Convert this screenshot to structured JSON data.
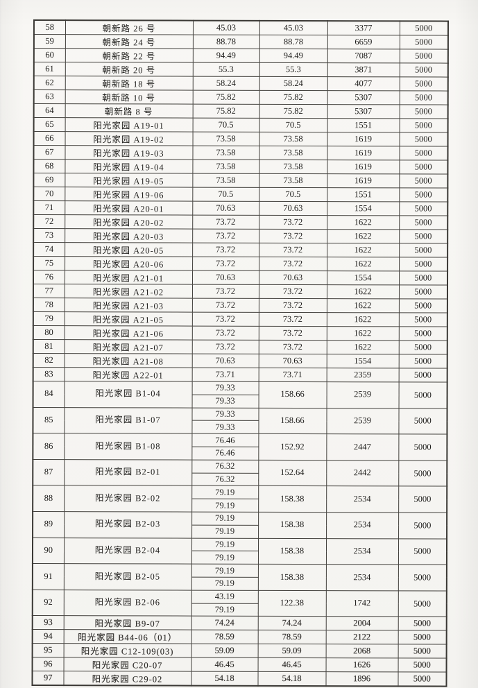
{
  "colors": {
    "paper": "#f6f5f2",
    "ink": "#1d1c1a",
    "table_line": "#413f3b"
  },
  "table": {
    "column_names": [
      "row-number",
      "location-name",
      "area-part",
      "area-total",
      "amount",
      "fixed-amount"
    ],
    "rows": [
      {
        "no": "58",
        "name": "朝新路 26 号",
        "parts": [
          "45.03"
        ],
        "total": "45.03",
        "amount": "3377",
        "subsidy": "5000"
      },
      {
        "no": "59",
        "name": "朝新路 24 号",
        "parts": [
          "88.78"
        ],
        "total": "88.78",
        "amount": "6659",
        "subsidy": "5000"
      },
      {
        "no": "60",
        "name": "朝新路 22 号",
        "parts": [
          "94.49"
        ],
        "total": "94.49",
        "amount": "7087",
        "subsidy": "5000"
      },
      {
        "no": "61",
        "name": "朝新路 20 号",
        "parts": [
          "55.3"
        ],
        "total": "55.3",
        "amount": "3871",
        "subsidy": "5000"
      },
      {
        "no": "62",
        "name": "朝新路 18 号",
        "parts": [
          "58.24"
        ],
        "total": "58.24",
        "amount": "4077",
        "subsidy": "5000"
      },
      {
        "no": "63",
        "name": "朝新路 10 号",
        "parts": [
          "75.82"
        ],
        "total": "75.82",
        "amount": "5307",
        "subsidy": "5000"
      },
      {
        "no": "64",
        "name": "朝新路 8 号",
        "parts": [
          "75.82"
        ],
        "total": "75.82",
        "amount": "5307",
        "subsidy": "5000"
      },
      {
        "no": "65",
        "name": "阳光家园 A19-01",
        "parts": [
          "70.5"
        ],
        "total": "70.5",
        "amount": "1551",
        "subsidy": "5000"
      },
      {
        "no": "66",
        "name": "阳光家园 A19-02",
        "parts": [
          "73.58"
        ],
        "total": "73.58",
        "amount": "1619",
        "subsidy": "5000"
      },
      {
        "no": "67",
        "name": "阳光家园 A19-03",
        "parts": [
          "73.58"
        ],
        "total": "73.58",
        "amount": "1619",
        "subsidy": "5000"
      },
      {
        "no": "68",
        "name": "阳光家园 A19-04",
        "parts": [
          "73.58"
        ],
        "total": "73.58",
        "amount": "1619",
        "subsidy": "5000"
      },
      {
        "no": "69",
        "name": "阳光家园 A19-05",
        "parts": [
          "73.58"
        ],
        "total": "73.58",
        "amount": "1619",
        "subsidy": "5000"
      },
      {
        "no": "70",
        "name": "阳光家园 A19-06",
        "parts": [
          "70.5"
        ],
        "total": "70.5",
        "amount": "1551",
        "subsidy": "5000"
      },
      {
        "no": "71",
        "name": "阳光家园 A20-01",
        "parts": [
          "70.63"
        ],
        "total": "70.63",
        "amount": "1554",
        "subsidy": "5000"
      },
      {
        "no": "72",
        "name": "阳光家园 A20-02",
        "parts": [
          "73.72"
        ],
        "total": "73.72",
        "amount": "1622",
        "subsidy": "5000"
      },
      {
        "no": "73",
        "name": "阳光家园 A20-03",
        "parts": [
          "73.72"
        ],
        "total": "73.72",
        "amount": "1622",
        "subsidy": "5000"
      },
      {
        "no": "74",
        "name": "阳光家园 A20-05",
        "parts": [
          "73.72"
        ],
        "total": "73.72",
        "amount": "1622",
        "subsidy": "5000"
      },
      {
        "no": "75",
        "name": "阳光家园 A20-06",
        "parts": [
          "73.72"
        ],
        "total": "73.72",
        "amount": "1622",
        "subsidy": "5000"
      },
      {
        "no": "76",
        "name": "阳光家园 A21-01",
        "parts": [
          "70.63"
        ],
        "total": "70.63",
        "amount": "1554",
        "subsidy": "5000"
      },
      {
        "no": "77",
        "name": "阳光家园 A21-02",
        "parts": [
          "73.72"
        ],
        "total": "73.72",
        "amount": "1622",
        "subsidy": "5000"
      },
      {
        "no": "78",
        "name": "阳光家园 A21-03",
        "parts": [
          "73.72"
        ],
        "total": "73.72",
        "amount": "1622",
        "subsidy": "5000"
      },
      {
        "no": "79",
        "name": "阳光家园 A21-05",
        "parts": [
          "73.72"
        ],
        "total": "73.72",
        "amount": "1622",
        "subsidy": "5000"
      },
      {
        "no": "80",
        "name": "阳光家园 A21-06",
        "parts": [
          "73.72"
        ],
        "total": "73.72",
        "amount": "1622",
        "subsidy": "5000"
      },
      {
        "no": "81",
        "name": "阳光家园 A21-07",
        "parts": [
          "73.72"
        ],
        "total": "73.72",
        "amount": "1622",
        "subsidy": "5000"
      },
      {
        "no": "82",
        "name": "阳光家园 A21-08",
        "parts": [
          "70.63"
        ],
        "total": "70.63",
        "amount": "1554",
        "subsidy": "5000"
      },
      {
        "no": "83",
        "name": "阳光家园 A22-01",
        "parts": [
          "73.71"
        ],
        "total": "73.71",
        "amount": "2359",
        "subsidy": "5000"
      },
      {
        "no": "84",
        "name": "阳光家园 B1-04",
        "parts": [
          "79.33",
          "79.33"
        ],
        "total": "158.66",
        "amount": "2539",
        "subsidy": "5000"
      },
      {
        "no": "85",
        "name": "阳光家园 B1-07",
        "parts": [
          "79.33",
          "79.33"
        ],
        "total": "158.66",
        "amount": "2539",
        "subsidy": "5000"
      },
      {
        "no": "86",
        "name": "阳光家园 B1-08",
        "parts": [
          "76.46",
          "76.46"
        ],
        "total": "152.92",
        "amount": "2447",
        "subsidy": "5000"
      },
      {
        "no": "87",
        "name": "阳光家园 B2-01",
        "parts": [
          "76.32",
          "76.32"
        ],
        "total": "152.64",
        "amount": "2442",
        "subsidy": "5000"
      },
      {
        "no": "88",
        "name": "阳光家园 B2-02",
        "parts": [
          "79.19",
          "79.19"
        ],
        "total": "158.38",
        "amount": "2534",
        "subsidy": "5000"
      },
      {
        "no": "89",
        "name": "阳光家园 B2-03",
        "parts": [
          "79.19",
          "79.19"
        ],
        "total": "158.38",
        "amount": "2534",
        "subsidy": "5000"
      },
      {
        "no": "90",
        "name": "阳光家园 B2-04",
        "parts": [
          "79.19",
          "79.19"
        ],
        "total": "158.38",
        "amount": "2534",
        "subsidy": "5000"
      },
      {
        "no": "91",
        "name": "阳光家园 B2-05",
        "parts": [
          "79.19",
          "79.19"
        ],
        "total": "158.38",
        "amount": "2534",
        "subsidy": "5000"
      },
      {
        "no": "92",
        "name": "阳光家园 B2-06",
        "parts": [
          "43.19",
          "79.19"
        ],
        "total": "122.38",
        "amount": "1742",
        "subsidy": "5000"
      },
      {
        "no": "93",
        "name": "阳光家园 B9-07",
        "parts": [
          "74.24"
        ],
        "total": "74.24",
        "amount": "2004",
        "subsidy": "5000",
        "faded": true
      },
      {
        "no": "94",
        "name": "阳光家园 B44-06（01）",
        "parts": [
          "78.59"
        ],
        "total": "78.59",
        "amount": "2122",
        "subsidy": "5000",
        "faded": true
      },
      {
        "no": "95",
        "name": "阳光家园 C12-109(03)",
        "parts": [
          "59.09"
        ],
        "total": "59.09",
        "amount": "2068",
        "subsidy": "5000",
        "faded": true
      },
      {
        "no": "96",
        "name": "阳光家园 C20-07",
        "parts": [
          "46.45"
        ],
        "total": "46.45",
        "amount": "1626",
        "subsidy": "5000",
        "faded": true
      },
      {
        "no": "97",
        "name": "阳光家园 C29-02",
        "parts": [
          "54.18"
        ],
        "total": "54.18",
        "amount": "1896",
        "subsidy": "5000",
        "faded": true
      }
    ]
  }
}
